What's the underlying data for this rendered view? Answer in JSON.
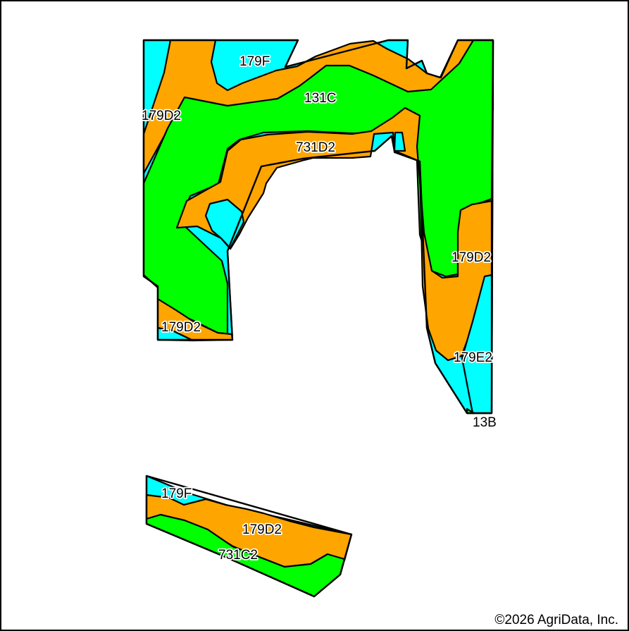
{
  "colors": {
    "cyan_zone": "#00ffff",
    "orange_zone": "#ffa500",
    "green_zone": "#00ff00",
    "border": "#000000",
    "background": "#ffffff"
  },
  "soil_labels": [
    {
      "id": "north-179F",
      "text": "179F"
    },
    {
      "id": "north-131C",
      "text": "131C"
    },
    {
      "id": "west-179D2",
      "text": "179D2"
    },
    {
      "id": "center-731D2",
      "text": "731D2"
    },
    {
      "id": "east-179D2",
      "text": "179D2"
    },
    {
      "id": "southwest-179D2",
      "text": "179D2"
    },
    {
      "id": "east-179E2",
      "text": "179E2"
    },
    {
      "id": "east-13B",
      "text": "13B"
    },
    {
      "id": "south-179F",
      "text": "179F"
    },
    {
      "id": "south-179D2",
      "text": "179D2"
    },
    {
      "id": "south-731C2",
      "text": "731C2"
    }
  ],
  "copyright": "©2026 AgriData, Inc."
}
